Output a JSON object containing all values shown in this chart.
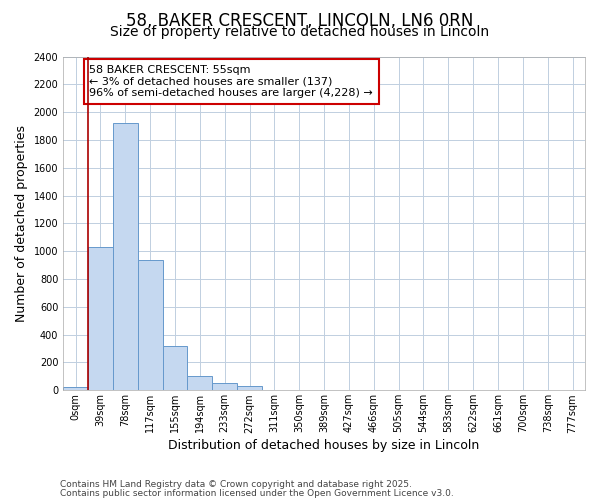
{
  "title_line1": "58, BAKER CRESCENT, LINCOLN, LN6 0RN",
  "title_line2": "Size of property relative to detached houses in Lincoln",
  "xlabel": "Distribution of detached houses by size in Lincoln",
  "ylabel": "Number of detached properties",
  "categories": [
    "0sqm",
    "39sqm",
    "78sqm",
    "117sqm",
    "155sqm",
    "194sqm",
    "233sqm",
    "272sqm",
    "311sqm",
    "350sqm",
    "389sqm",
    "427sqm",
    "466sqm",
    "505sqm",
    "544sqm",
    "583sqm",
    "622sqm",
    "661sqm",
    "700sqm",
    "738sqm",
    "777sqm"
  ],
  "values": [
    20,
    1030,
    1920,
    940,
    320,
    105,
    50,
    30,
    0,
    0,
    0,
    0,
    0,
    0,
    0,
    0,
    0,
    0,
    0,
    0,
    0
  ],
  "bar_color": "#c5d8f0",
  "bar_edge_color": "#6699cc",
  "grid_color": "#c0cfe0",
  "background_color": "#ffffff",
  "vline_x": 0.5,
  "vline_color": "#aa0000",
  "annotation_text": "58 BAKER CRESCENT: 55sqm\n← 3% of detached houses are smaller (137)\n96% of semi-detached houses are larger (4,228) →",
  "annotation_box_facecolor": "#ffffff",
  "annotation_box_edgecolor": "#cc0000",
  "ylim": [
    0,
    2400
  ],
  "yticks": [
    0,
    200,
    400,
    600,
    800,
    1000,
    1200,
    1400,
    1600,
    1800,
    2000,
    2200,
    2400
  ],
  "footer_line1": "Contains HM Land Registry data © Crown copyright and database right 2025.",
  "footer_line2": "Contains public sector information licensed under the Open Government Licence v3.0.",
  "title_fontsize": 12,
  "subtitle_fontsize": 10,
  "axis_label_fontsize": 9,
  "tick_fontsize": 7,
  "annotation_fontsize": 8,
  "footer_fontsize": 6.5
}
